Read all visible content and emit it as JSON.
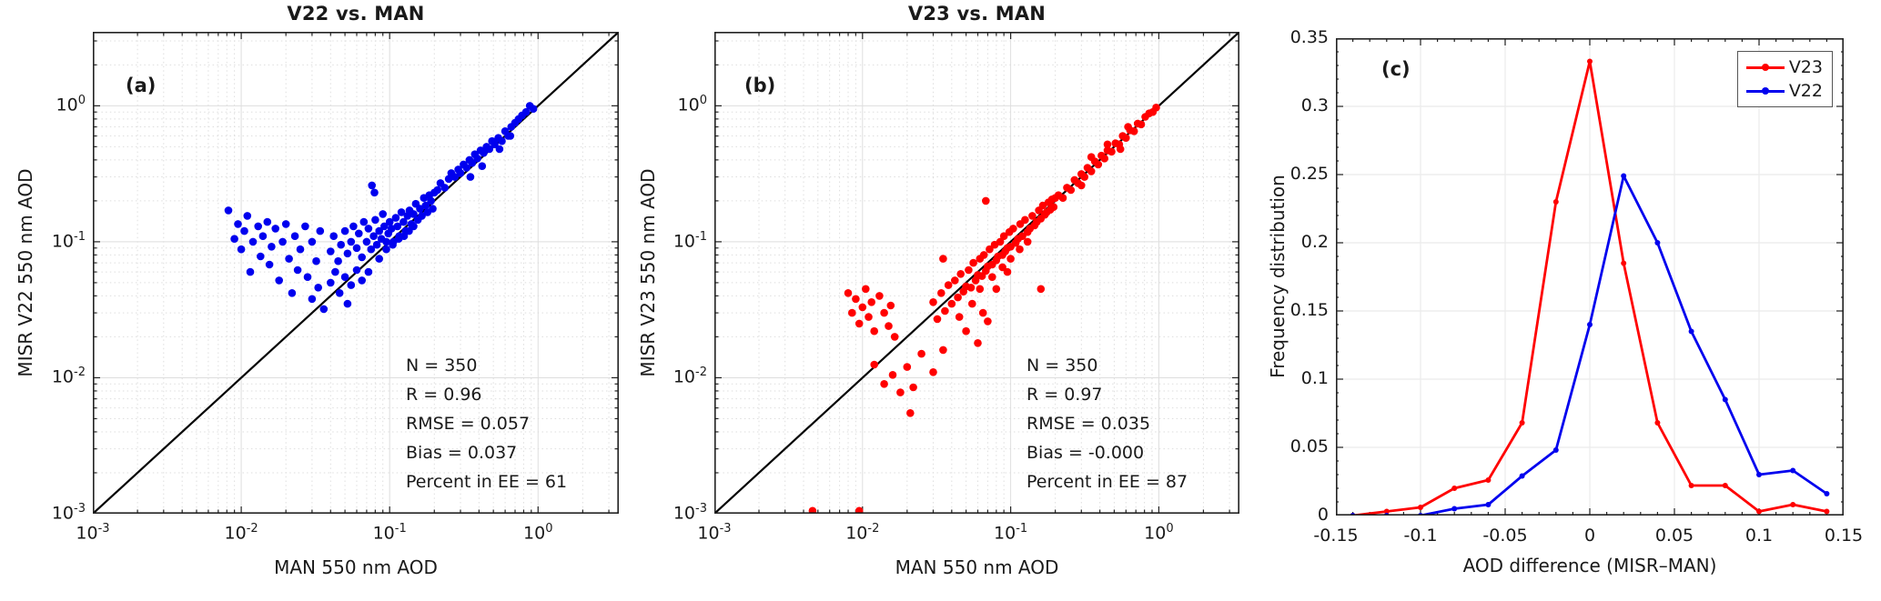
{
  "figure": {
    "background": "#ffffff",
    "axis_color": "#222222",
    "diagonal_color": "#000000"
  },
  "chart_data": [
    {
      "id": "a",
      "type": "scatter",
      "title": "V22 vs. MAN",
      "panel_letter": "(a)",
      "xlabel": "MAN 550 nm AOD",
      "ylabel": "MISR V22 550 nm AOD",
      "xscale": "log",
      "yscale": "log",
      "xlim": [
        0.001,
        3.5
      ],
      "ylim": [
        0.001,
        3.5
      ],
      "tick_decades": [
        -3,
        -2,
        -1,
        0
      ],
      "one_to_one_line": true,
      "marker_color": "#0000ee",
      "stats": {
        "n": "N = 350",
        "r": "R = 0.96",
        "rmse": "RMSE = 0.057",
        "bias": "Bias = 0.037",
        "ee": "Percent in EE = 61"
      },
      "points": [
        [
          0.0082,
          0.17
        ],
        [
          0.009,
          0.105
        ],
        [
          0.0095,
          0.135
        ],
        [
          0.01,
          0.088
        ],
        [
          0.0105,
          0.12
        ],
        [
          0.011,
          0.155
        ],
        [
          0.0115,
          0.06
        ],
        [
          0.012,
          0.1
        ],
        [
          0.013,
          0.13
        ],
        [
          0.0135,
          0.078
        ],
        [
          0.014,
          0.11
        ],
        [
          0.015,
          0.14
        ],
        [
          0.0155,
          0.068
        ],
        [
          0.016,
          0.092
        ],
        [
          0.017,
          0.125
        ],
        [
          0.018,
          0.052
        ],
        [
          0.019,
          0.1
        ],
        [
          0.02,
          0.135
        ],
        [
          0.021,
          0.075
        ],
        [
          0.022,
          0.042
        ],
        [
          0.023,
          0.11
        ],
        [
          0.024,
          0.062
        ],
        [
          0.025,
          0.088
        ],
        [
          0.027,
          0.13
        ],
        [
          0.028,
          0.055
        ],
        [
          0.03,
          0.1
        ],
        [
          0.032,
          0.072
        ],
        [
          0.034,
          0.12
        ],
        [
          0.03,
          0.038
        ],
        [
          0.033,
          0.046
        ],
        [
          0.036,
          0.032
        ],
        [
          0.04,
          0.05
        ],
        [
          0.043,
          0.06
        ],
        [
          0.046,
          0.042
        ],
        [
          0.05,
          0.055
        ],
        [
          0.055,
          0.048
        ],
        [
          0.06,
          0.062
        ],
        [
          0.052,
          0.035
        ],
        [
          0.065,
          0.052
        ],
        [
          0.072,
          0.06
        ],
        [
          0.04,
          0.085
        ],
        [
          0.042,
          0.11
        ],
        [
          0.045,
          0.072
        ],
        [
          0.047,
          0.095
        ],
        [
          0.05,
          0.12
        ],
        [
          0.052,
          0.082
        ],
        [
          0.055,
          0.1
        ],
        [
          0.057,
          0.13
        ],
        [
          0.06,
          0.09
        ],
        [
          0.062,
          0.115
        ],
        [
          0.065,
          0.077
        ],
        [
          0.067,
          0.14
        ],
        [
          0.07,
          0.1
        ],
        [
          0.072,
          0.125
        ],
        [
          0.075,
          0.088
        ],
        [
          0.078,
          0.11
        ],
        [
          0.08,
          0.145
        ],
        [
          0.082,
          0.095
        ],
        [
          0.085,
          0.12
        ],
        [
          0.088,
          0.105
        ],
        [
          0.09,
          0.16
        ],
        [
          0.092,
          0.13
        ],
        [
          0.095,
          0.1
        ],
        [
          0.098,
          0.115
        ],
        [
          0.1,
          0.14
        ],
        [
          0.103,
          0.125
        ],
        [
          0.106,
          0.1
        ],
        [
          0.11,
          0.15
        ],
        [
          0.113,
          0.13
        ],
        [
          0.116,
          0.11
        ],
        [
          0.12,
          0.165
        ],
        [
          0.124,
          0.14
        ],
        [
          0.128,
          0.12
        ],
        [
          0.132,
          0.155
        ],
        [
          0.136,
          0.17
        ],
        [
          0.14,
          0.135
        ],
        [
          0.145,
          0.16
        ],
        [
          0.15,
          0.19
        ],
        [
          0.155,
          0.145
        ],
        [
          0.16,
          0.175
        ],
        [
          0.165,
          0.155
        ],
        [
          0.17,
          0.21
        ],
        [
          0.175,
          0.185
        ],
        [
          0.18,
          0.165
        ],
        [
          0.185,
          0.22
        ],
        [
          0.19,
          0.2
        ],
        [
          0.195,
          0.175
        ],
        [
          0.2,
          0.23
        ],
        [
          0.085,
          0.075
        ],
        [
          0.095,
          0.088
        ],
        [
          0.105,
          0.095
        ],
        [
          0.115,
          0.105
        ],
        [
          0.125,
          0.11
        ],
        [
          0.135,
          0.12
        ],
        [
          0.145,
          0.13
        ],
        [
          0.076,
          0.26
        ],
        [
          0.079,
          0.23
        ],
        [
          0.21,
          0.24
        ],
        [
          0.22,
          0.27
        ],
        [
          0.235,
          0.25
        ],
        [
          0.25,
          0.29
        ],
        [
          0.26,
          0.32
        ],
        [
          0.275,
          0.3
        ],
        [
          0.29,
          0.34
        ],
        [
          0.3,
          0.32
        ],
        [
          0.315,
          0.37
        ],
        [
          0.33,
          0.35
        ],
        [
          0.345,
          0.4
        ],
        [
          0.36,
          0.38
        ],
        [
          0.375,
          0.44
        ],
        [
          0.39,
          0.41
        ],
        [
          0.41,
          0.47
        ],
        [
          0.43,
          0.45
        ],
        [
          0.45,
          0.5
        ],
        [
          0.47,
          0.48
        ],
        [
          0.49,
          0.55
        ],
        [
          0.51,
          0.52
        ],
        [
          0.54,
          0.58
        ],
        [
          0.57,
          0.55
        ],
        [
          0.6,
          0.65
        ],
        [
          0.63,
          0.6
        ],
        [
          0.66,
          0.7
        ],
        [
          0.7,
          0.75
        ],
        [
          0.74,
          0.8
        ],
        [
          0.78,
          0.85
        ],
        [
          0.83,
          0.9
        ],
        [
          0.88,
          1.0
        ],
        [
          0.93,
          0.95
        ],
        [
          0.42,
          0.36
        ],
        [
          0.55,
          0.48
        ],
        [
          0.35,
          0.3
        ],
        [
          0.65,
          0.6
        ]
      ]
    },
    {
      "id": "b",
      "type": "scatter",
      "title": "V23 vs. MAN",
      "panel_letter": "(b)",
      "xlabel": "MAN 550 nm AOD",
      "ylabel": "MISR V23 550 nm AOD",
      "xscale": "log",
      "yscale": "log",
      "xlim": [
        0.001,
        3.5
      ],
      "ylim": [
        0.001,
        3.5
      ],
      "tick_decades": [
        -3,
        -2,
        -1,
        0
      ],
      "one_to_one_line": true,
      "marker_color": "#ff0000",
      "stats": {
        "n": "N = 350",
        "r": "R = 0.97",
        "rmse": "RMSE = 0.035",
        "bias": "Bias = -0.000",
        "ee": "Percent in EE = 87"
      },
      "points": [
        [
          0.008,
          0.042
        ],
        [
          0.0085,
          0.03
        ],
        [
          0.009,
          0.038
        ],
        [
          0.0095,
          0.025
        ],
        [
          0.01,
          0.033
        ],
        [
          0.0105,
          0.045
        ],
        [
          0.011,
          0.028
        ],
        [
          0.0115,
          0.036
        ],
        [
          0.012,
          0.022
        ],
        [
          0.013,
          0.04
        ],
        [
          0.014,
          0.03
        ],
        [
          0.015,
          0.024
        ],
        [
          0.0155,
          0.034
        ],
        [
          0.0165,
          0.02
        ],
        [
          0.012,
          0.0125
        ],
        [
          0.014,
          0.009
        ],
        [
          0.016,
          0.0105
        ],
        [
          0.018,
          0.0078
        ],
        [
          0.02,
          0.012
        ],
        [
          0.022,
          0.0085
        ],
        [
          0.025,
          0.015
        ],
        [
          0.03,
          0.011
        ],
        [
          0.021,
          0.0055
        ],
        [
          0.035,
          0.016
        ],
        [
          0.0046,
          0.00105
        ],
        [
          0.0095,
          0.00105
        ],
        [
          0.03,
          0.036
        ],
        [
          0.032,
          0.027
        ],
        [
          0.034,
          0.042
        ],
        [
          0.036,
          0.031
        ],
        [
          0.038,
          0.048
        ],
        [
          0.04,
          0.035
        ],
        [
          0.042,
          0.052
        ],
        [
          0.044,
          0.039
        ],
        [
          0.046,
          0.058
        ],
        [
          0.048,
          0.043
        ],
        [
          0.05,
          0.047
        ],
        [
          0.052,
          0.062
        ],
        [
          0.054,
          0.046
        ],
        [
          0.056,
          0.07
        ],
        [
          0.058,
          0.052
        ],
        [
          0.06,
          0.057
        ],
        [
          0.062,
          0.075
        ],
        [
          0.064,
          0.056
        ],
        [
          0.066,
          0.08
        ],
        [
          0.068,
          0.061
        ],
        [
          0.07,
          0.066
        ],
        [
          0.072,
          0.088
        ],
        [
          0.075,
          0.068
        ],
        [
          0.078,
          0.095
        ],
        [
          0.08,
          0.073
        ],
        [
          0.082,
          0.078
        ],
        [
          0.085,
          0.1
        ],
        [
          0.088,
          0.08
        ],
        [
          0.09,
          0.11
        ],
        [
          0.092,
          0.085
        ],
        [
          0.095,
          0.09
        ],
        [
          0.098,
          0.118
        ],
        [
          0.1,
          0.092
        ],
        [
          0.104,
          0.125
        ],
        [
          0.108,
          0.098
        ],
        [
          0.112,
          0.105
        ],
        [
          0.116,
          0.135
        ],
        [
          0.12,
          0.11
        ],
        [
          0.125,
          0.145
        ],
        [
          0.13,
          0.118
        ],
        [
          0.135,
          0.125
        ],
        [
          0.14,
          0.155
        ],
        [
          0.145,
          0.132
        ],
        [
          0.15,
          0.14
        ],
        [
          0.155,
          0.17
        ],
        [
          0.16,
          0.148
        ],
        [
          0.165,
          0.185
        ],
        [
          0.17,
          0.158
        ],
        [
          0.175,
          0.165
        ],
        [
          0.18,
          0.195
        ],
        [
          0.185,
          0.172
        ],
        [
          0.19,
          0.205
        ],
        [
          0.195,
          0.18
        ],
        [
          0.2,
          0.21
        ],
        [
          0.062,
          0.045
        ],
        [
          0.075,
          0.055
        ],
        [
          0.088,
          0.065
        ],
        [
          0.1,
          0.075
        ],
        [
          0.115,
          0.088
        ],
        [
          0.13,
          0.1
        ],
        [
          0.045,
          0.028
        ],
        [
          0.055,
          0.035
        ],
        [
          0.065,
          0.03
        ],
        [
          0.08,
          0.045
        ],
        [
          0.095,
          0.06
        ],
        [
          0.05,
          0.022
        ],
        [
          0.06,
          0.018
        ],
        [
          0.07,
          0.026
        ],
        [
          0.035,
          0.075
        ],
        [
          0.068,
          0.2
        ],
        [
          0.16,
          0.045
        ],
        [
          0.21,
          0.22
        ],
        [
          0.225,
          0.21
        ],
        [
          0.24,
          0.25
        ],
        [
          0.255,
          0.24
        ],
        [
          0.27,
          0.285
        ],
        [
          0.285,
          0.27
        ],
        [
          0.3,
          0.315
        ],
        [
          0.315,
          0.3
        ],
        [
          0.33,
          0.35
        ],
        [
          0.35,
          0.33
        ],
        [
          0.37,
          0.39
        ],
        [
          0.39,
          0.37
        ],
        [
          0.41,
          0.43
        ],
        [
          0.43,
          0.41
        ],
        [
          0.45,
          0.47
        ],
        [
          0.48,
          0.46
        ],
        [
          0.51,
          0.53
        ],
        [
          0.54,
          0.52
        ],
        [
          0.57,
          0.6
        ],
        [
          0.6,
          0.58
        ],
        [
          0.64,
          0.66
        ],
        [
          0.68,
          0.65
        ],
        [
          0.72,
          0.74
        ],
        [
          0.76,
          0.73
        ],
        [
          0.81,
          0.83
        ],
        [
          0.86,
          0.88
        ],
        [
          0.91,
          0.9
        ],
        [
          0.96,
          0.97
        ],
        [
          0.35,
          0.42
        ],
        [
          0.45,
          0.52
        ],
        [
          0.55,
          0.48
        ],
        [
          0.3,
          0.26
        ],
        [
          0.62,
          0.7
        ]
      ]
    },
    {
      "id": "c",
      "type": "line",
      "title": "",
      "panel_letter": "(c)",
      "xlabel": "AOD difference (MISR–MAN)",
      "ylabel": "Frequency distribution",
      "xlim": [
        -0.15,
        0.15
      ],
      "ylim": [
        0,
        0.35
      ],
      "xticks": [
        -0.15,
        -0.1,
        -0.05,
        0,
        0.05,
        0.1,
        0.15
      ],
      "yticks": [
        0,
        0.05,
        0.1,
        0.15,
        0.2,
        0.25,
        0.3,
        0.35
      ],
      "legend_position": "top-right",
      "x": [
        -0.14,
        -0.12,
        -0.1,
        -0.08,
        -0.06,
        -0.04,
        -0.02,
        0,
        0.02,
        0.04,
        0.06,
        0.08,
        0.1,
        0.12,
        0.14
      ],
      "series": [
        {
          "name": "V23",
          "color": "#ff0000",
          "values": [
            0,
            0.003,
            0.006,
            0.02,
            0.026,
            0.068,
            0.23,
            0.333,
            0.185,
            0.068,
            0.022,
            0.022,
            0.003,
            0.008,
            0.003
          ]
        },
        {
          "name": "V22",
          "color": "#0000ee",
          "values": [
            0,
            0,
            0,
            0.005,
            0.008,
            0.029,
            0.048,
            0.14,
            0.249,
            0.2,
            0.135,
            0.085,
            0.03,
            0.033,
            0.016
          ]
        }
      ]
    }
  ]
}
